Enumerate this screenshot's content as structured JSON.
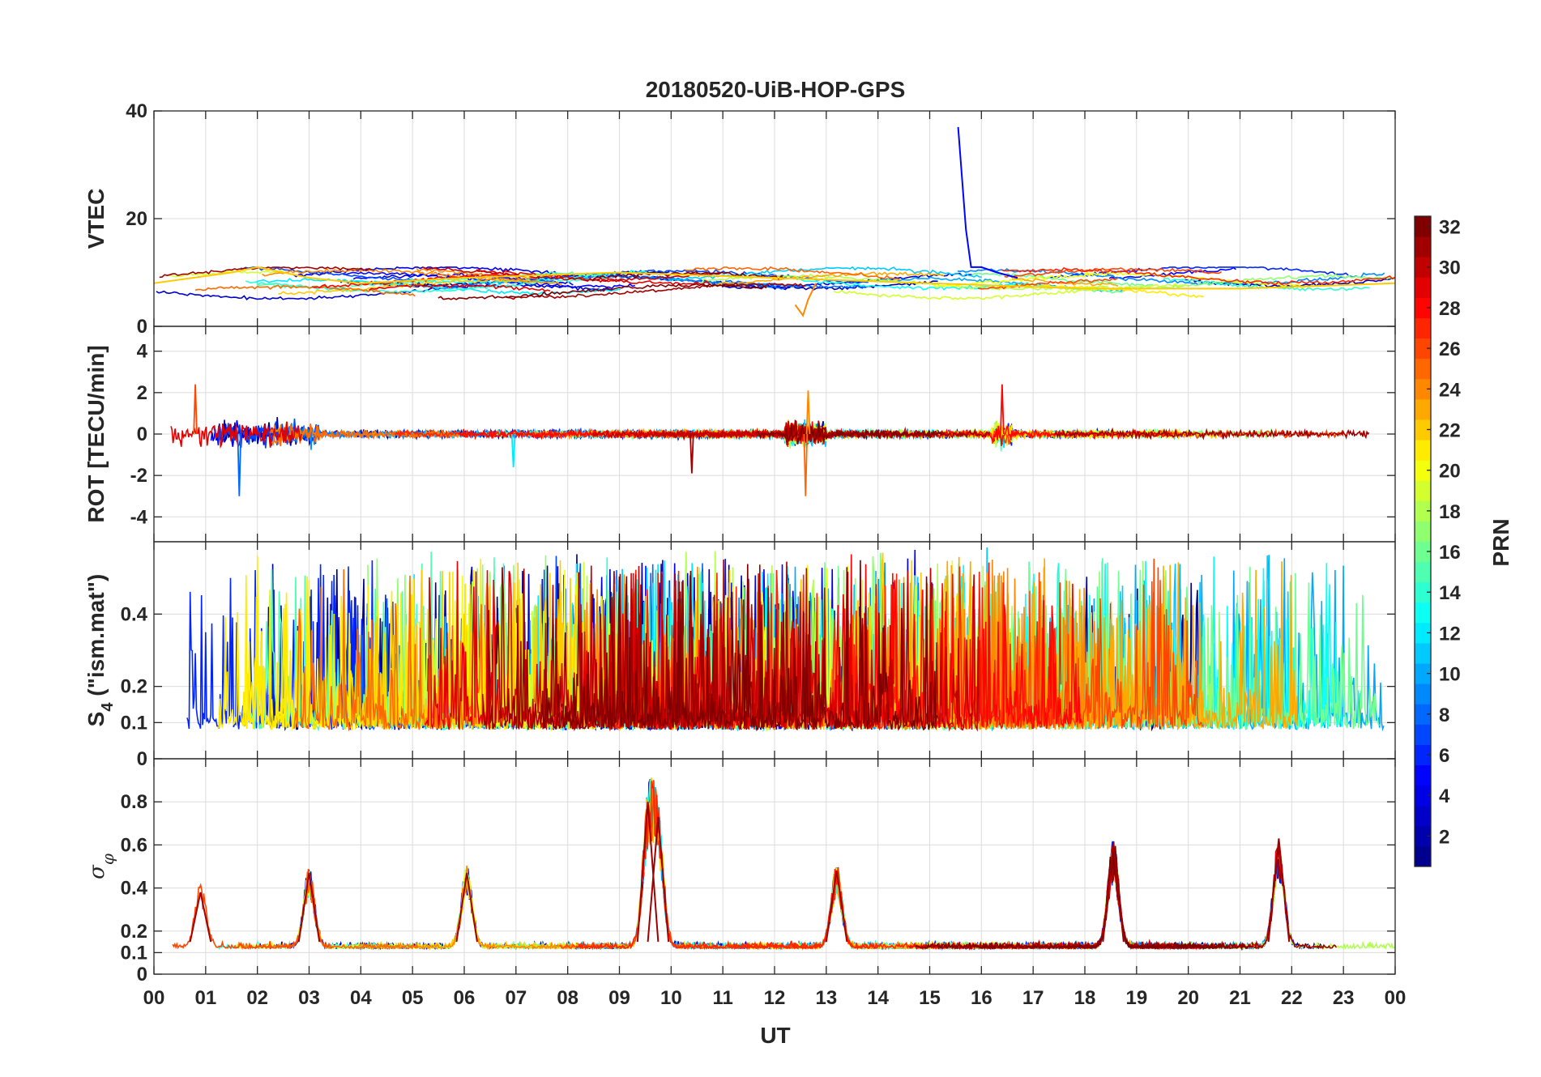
{
  "chart_data": {
    "type": "line",
    "title": "20180520-UiB-HOP-GPS",
    "xlabel": "UT",
    "x_ticks": [
      "00",
      "01",
      "02",
      "03",
      "04",
      "05",
      "06",
      "07",
      "08",
      "09",
      "10",
      "11",
      "12",
      "13",
      "14",
      "15",
      "16",
      "17",
      "18",
      "19",
      "20",
      "21",
      "22",
      "23",
      "00"
    ],
    "xlim": [
      0,
      24
    ],
    "colorbar": {
      "label": "PRN",
      "range": [
        1,
        32
      ],
      "ticks": [
        2,
        4,
        6,
        8,
        10,
        12,
        14,
        16,
        18,
        20,
        22,
        24,
        26,
        28,
        30,
        32
      ],
      "colormap": [
        "#00008f",
        "#0000ff",
        "#0080ff",
        "#00ffff",
        "#80ff80",
        "#ffff00",
        "#ff8000",
        "#ff0000",
        "#800000"
      ]
    },
    "panels": [
      {
        "id": "vtec",
        "ylabel": "VTEC",
        "ylim": [
          0,
          40
        ],
        "yticks": [
          0,
          20,
          40
        ],
        "series_summary": [
          {
            "prn": 5,
            "x": [
              15.55,
              15.7,
              15.8,
              16.0,
              16.3,
              16.7
            ],
            "y": [
              37,
              18,
              11,
              11,
              10,
              9
            ]
          },
          {
            "prn": 22,
            "x": [
              0.0,
              1.5,
              2.0,
              3.0,
              4.0,
              6.0,
              9.0,
              12.0,
              15.0,
              18.0,
              21.0,
              24.0
            ],
            "y": [
              8,
              10,
              11,
              9,
              8,
              9,
              10,
              9,
              8,
              7,
              7,
              8
            ]
          },
          {
            "prn": 24,
            "x": [
              12.4,
              12.55,
              12.65,
              12.8
            ],
            "y": [
              4,
              2,
              5,
              8
            ]
          }
        ],
        "typical_range": [
          5,
          11
        ]
      },
      {
        "id": "rot",
        "ylabel": "ROT [TECU/min]",
        "ylim": [
          -5.2,
          5.2
        ],
        "yticks": [
          -4,
          -2,
          0,
          2,
          4
        ],
        "notable_spikes": [
          {
            "x": 0.8,
            "y": 2.4
          },
          {
            "x": 1.65,
            "y": -3.0
          },
          {
            "x": 10.4,
            "y": -1.9
          },
          {
            "x": 12.6,
            "y": -3.0
          },
          {
            "x": 12.65,
            "y": 2.1
          },
          {
            "x": 16.4,
            "y": 2.4
          },
          {
            "x": 6.95,
            "y": -1.6
          }
        ],
        "typical_range": [
          -0.5,
          0.5
        ]
      },
      {
        "id": "s4",
        "ylabel": "S4 (\"ism.mat\")",
        "ylabel_main": "S",
        "ylabel_sub": "4",
        "ylabel_rest": " (\"ism.mat\")",
        "ylim": [
          0,
          0.6
        ],
        "yticks": [
          0,
          0.1,
          0.2,
          0.4
        ],
        "typical_range": [
          0.05,
          0.35
        ],
        "max_value": 0.6
      },
      {
        "id": "sigma_phi",
        "ylabel": "σφ",
        "ylabel_main": "σ",
        "ylabel_sub": "φ",
        "ylim": [
          0,
          1.0
        ],
        "yticks": [
          0,
          0.1,
          0.2,
          0.4,
          0.6,
          0.8
        ],
        "peaks": [
          {
            "x": 0.9,
            "y": 0.38
          },
          {
            "x": 3.0,
            "y": 0.47
          },
          {
            "x": 6.05,
            "y": 0.47
          },
          {
            "x": 9.55,
            "y": 0.8
          },
          {
            "x": 9.75,
            "y": 0.73
          },
          {
            "x": 13.2,
            "y": 0.48
          },
          {
            "x": 18.55,
            "y": 0.61
          },
          {
            "x": 21.75,
            "y": 0.63
          }
        ],
        "typical_range": [
          0.1,
          0.2
        ]
      }
    ]
  }
}
